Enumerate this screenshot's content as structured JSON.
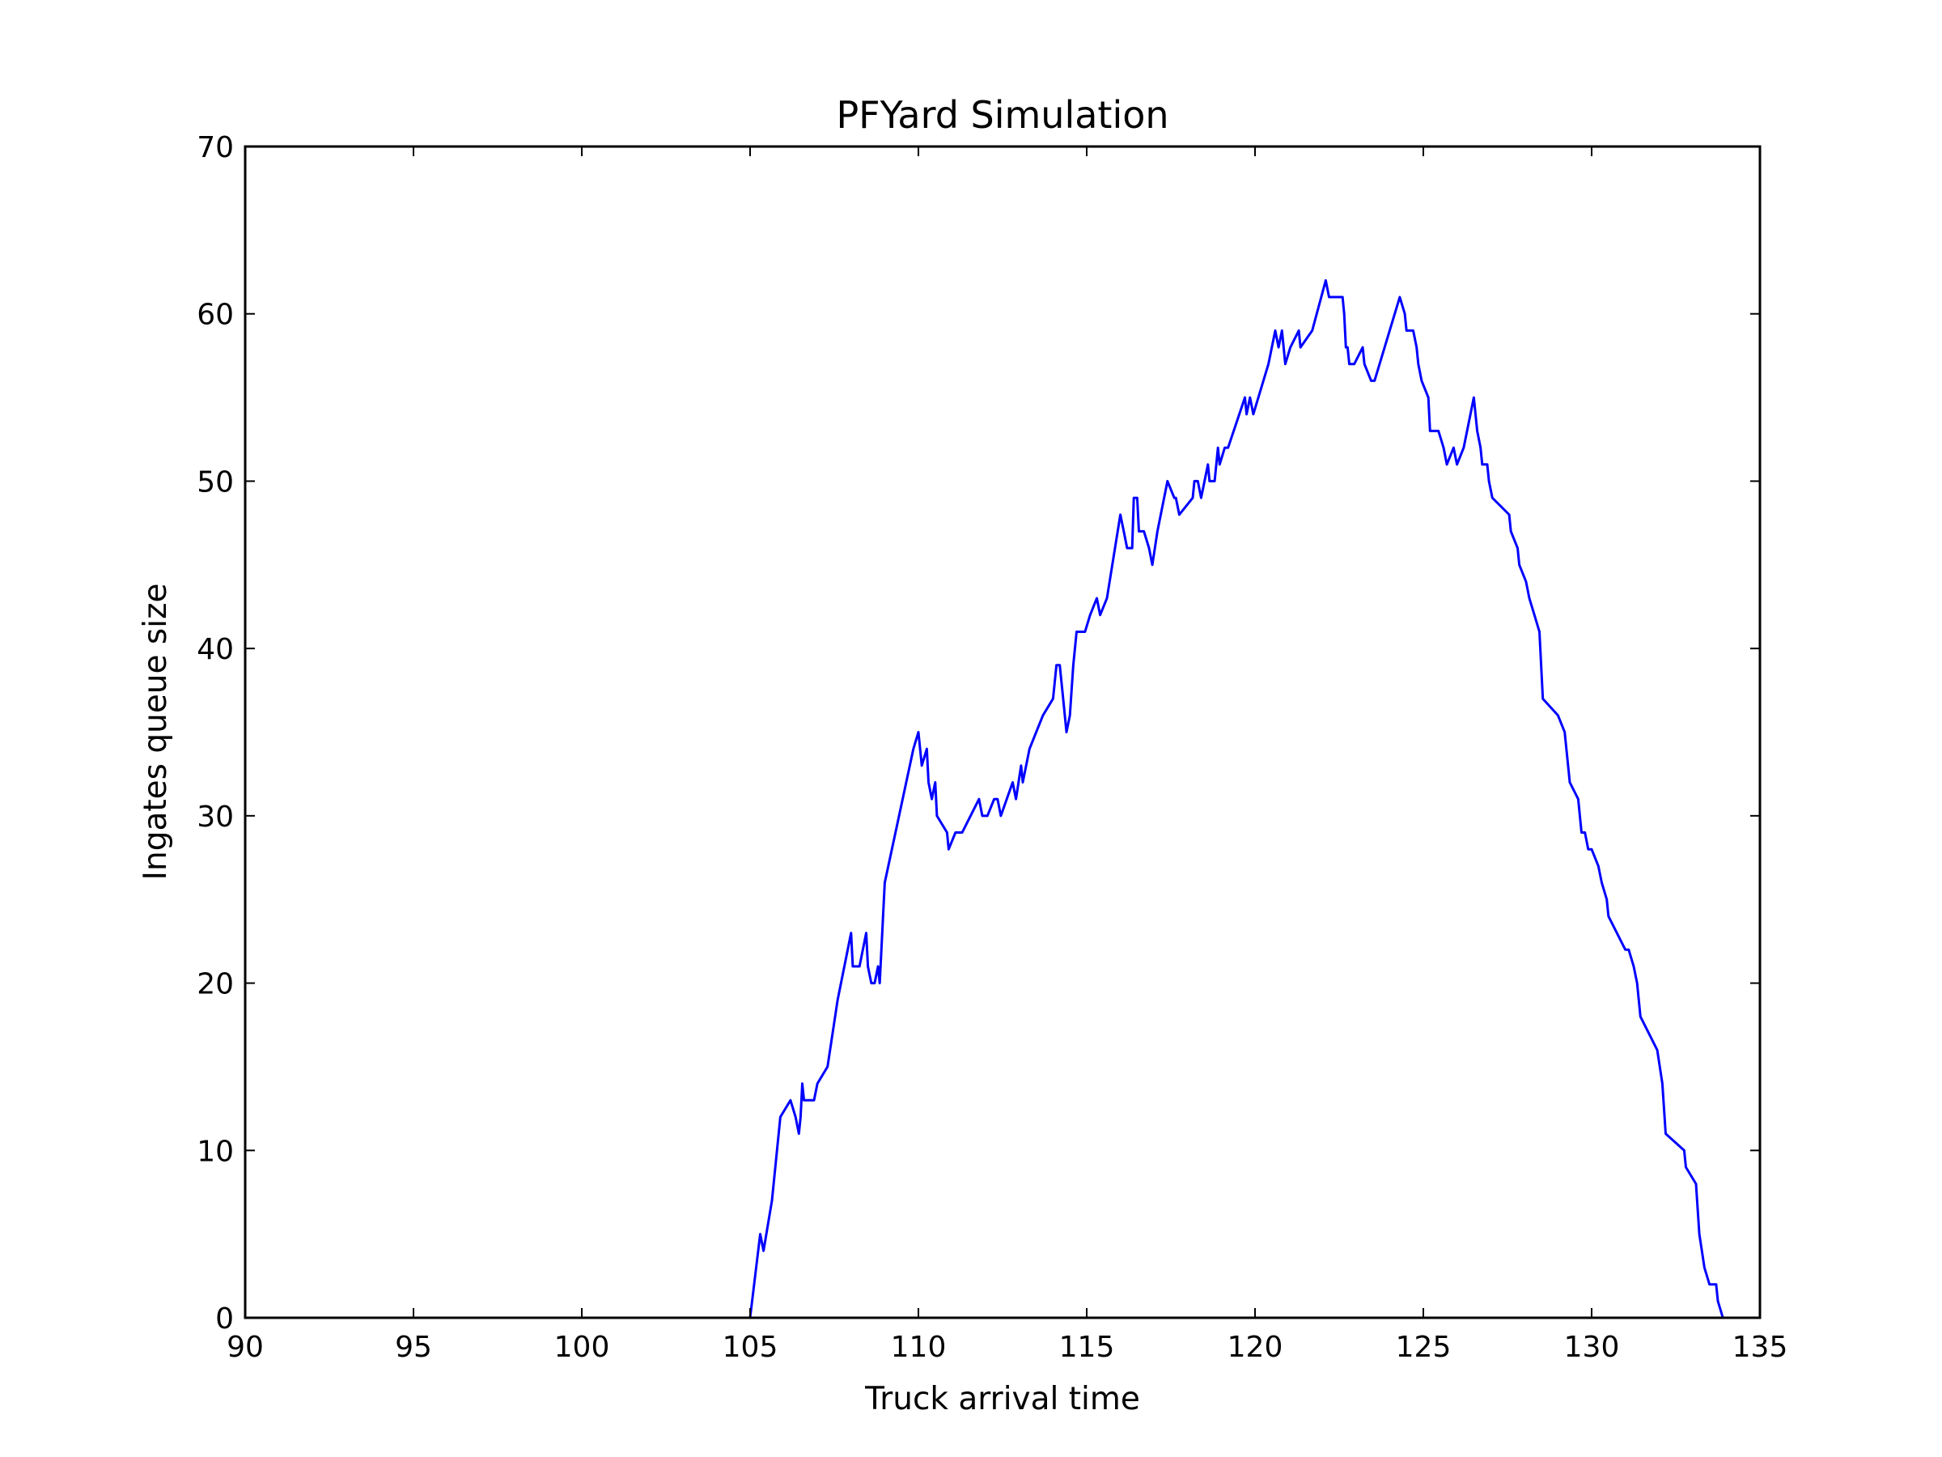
{
  "chart_data": {
    "type": "line",
    "title": "PFYard Simulation",
    "xlabel": "Truck arrival time",
    "ylabel": "Ingates queue size",
    "xlim": [
      90,
      135
    ],
    "ylim": [
      0,
      70
    ],
    "xticks": [
      90,
      95,
      100,
      105,
      110,
      115,
      120,
      125,
      130,
      135
    ],
    "yticks": [
      0,
      10,
      20,
      30,
      40,
      50,
      60,
      70
    ],
    "grid": false,
    "legend": "none",
    "series": [
      {
        "color": "#0000ff",
        "points": [
          [
            105.0,
            0
          ],
          [
            105.3,
            5
          ],
          [
            105.4,
            4
          ],
          [
            105.65,
            7
          ],
          [
            105.9,
            12
          ],
          [
            106.2,
            13
          ],
          [
            106.35,
            12
          ],
          [
            106.45,
            11
          ],
          [
            106.5,
            12
          ],
          [
            106.55,
            14
          ],
          [
            106.6,
            13
          ],
          [
            106.9,
            13
          ],
          [
            107.0,
            14
          ],
          [
            107.3,
            15
          ],
          [
            107.6,
            19
          ],
          [
            108.0,
            23
          ],
          [
            108.05,
            21
          ],
          [
            108.25,
            21
          ],
          [
            108.45,
            23
          ],
          [
            108.5,
            21
          ],
          [
            108.6,
            20
          ],
          [
            108.7,
            20
          ],
          [
            108.8,
            21
          ],
          [
            108.85,
            20
          ],
          [
            109.0,
            26
          ],
          [
            109.85,
            34
          ],
          [
            110.0,
            35
          ],
          [
            110.1,
            33
          ],
          [
            110.25,
            34
          ],
          [
            110.3,
            32
          ],
          [
            110.4,
            31
          ],
          [
            110.5,
            32
          ],
          [
            110.55,
            30
          ],
          [
            110.85,
            29
          ],
          [
            110.9,
            28
          ],
          [
            111.1,
            29
          ],
          [
            111.3,
            29
          ],
          [
            111.8,
            31
          ],
          [
            111.9,
            30
          ],
          [
            112.05,
            30
          ],
          [
            112.25,
            31
          ],
          [
            112.35,
            31
          ],
          [
            112.45,
            30
          ],
          [
            112.8,
            32
          ],
          [
            112.9,
            31
          ],
          [
            113.05,
            33
          ],
          [
            113.1,
            32
          ],
          [
            113.3,
            34
          ],
          [
            113.7,
            36
          ],
          [
            114.0,
            37
          ],
          [
            114.1,
            39
          ],
          [
            114.2,
            39
          ],
          [
            114.3,
            37
          ],
          [
            114.4,
            35
          ],
          [
            114.5,
            36
          ],
          [
            114.6,
            39
          ],
          [
            114.7,
            41
          ],
          [
            114.95,
            41
          ],
          [
            115.1,
            42
          ],
          [
            115.3,
            43
          ],
          [
            115.4,
            42
          ],
          [
            115.6,
            43
          ],
          [
            116.0,
            48
          ],
          [
            116.1,
            47
          ],
          [
            116.2,
            46
          ],
          [
            116.35,
            46
          ],
          [
            116.4,
            49
          ],
          [
            116.5,
            49
          ],
          [
            116.55,
            47
          ],
          [
            116.7,
            47
          ],
          [
            116.85,
            46
          ],
          [
            116.95,
            45
          ],
          [
            117.1,
            47
          ],
          [
            117.4,
            50
          ],
          [
            117.6,
            49
          ],
          [
            117.65,
            49
          ],
          [
            117.75,
            48
          ],
          [
            118.15,
            49
          ],
          [
            118.2,
            50
          ],
          [
            118.3,
            50
          ],
          [
            118.4,
            49
          ],
          [
            118.6,
            51
          ],
          [
            118.65,
            50
          ],
          [
            118.8,
            50
          ],
          [
            118.9,
            52
          ],
          [
            118.95,
            51
          ],
          [
            119.1,
            52
          ],
          [
            119.2,
            52
          ],
          [
            119.7,
            55
          ],
          [
            119.75,
            54
          ],
          [
            119.85,
            55
          ],
          [
            119.95,
            54
          ],
          [
            120.4,
            57
          ],
          [
            120.6,
            59
          ],
          [
            120.7,
            58
          ],
          [
            120.8,
            59
          ],
          [
            120.9,
            57
          ],
          [
            121.05,
            58
          ],
          [
            121.3,
            59
          ],
          [
            121.35,
            58
          ],
          [
            121.7,
            59
          ],
          [
            122.1,
            62
          ],
          [
            122.2,
            61
          ],
          [
            122.6,
            61
          ],
          [
            122.65,
            60
          ],
          [
            122.7,
            58
          ],
          [
            122.75,
            58
          ],
          [
            122.8,
            57
          ],
          [
            122.95,
            57
          ],
          [
            123.2,
            58
          ],
          [
            123.25,
            57
          ],
          [
            123.45,
            56
          ],
          [
            123.55,
            56
          ],
          [
            124.3,
            61
          ],
          [
            124.45,
            60
          ],
          [
            124.5,
            59
          ],
          [
            124.7,
            59
          ],
          [
            124.8,
            58
          ],
          [
            124.85,
            57
          ],
          [
            124.95,
            56
          ],
          [
            125.15,
            55
          ],
          [
            125.2,
            53
          ],
          [
            125.45,
            53
          ],
          [
            125.6,
            52
          ],
          [
            125.7,
            51
          ],
          [
            125.9,
            52
          ],
          [
            126.0,
            51
          ],
          [
            126.2,
            52
          ],
          [
            126.5,
            55
          ],
          [
            126.6,
            53
          ],
          [
            126.7,
            52
          ],
          [
            126.75,
            51
          ],
          [
            126.9,
            51
          ],
          [
            126.95,
            50
          ],
          [
            127.05,
            49
          ],
          [
            127.55,
            48
          ],
          [
            127.6,
            47
          ],
          [
            127.8,
            46
          ],
          [
            127.85,
            45
          ],
          [
            128.05,
            44
          ],
          [
            128.15,
            43
          ],
          [
            128.3,
            42
          ],
          [
            128.45,
            41
          ],
          [
            128.5,
            39
          ],
          [
            128.55,
            37
          ],
          [
            129.0,
            36
          ],
          [
            129.2,
            35
          ],
          [
            129.25,
            34
          ],
          [
            129.35,
            32
          ],
          [
            129.6,
            31
          ],
          [
            129.7,
            29
          ],
          [
            129.8,
            29
          ],
          [
            129.9,
            28
          ],
          [
            130.0,
            28
          ],
          [
            130.2,
            27
          ],
          [
            130.3,
            26
          ],
          [
            130.45,
            25
          ],
          [
            130.5,
            24
          ],
          [
            130.75,
            23
          ],
          [
            131.0,
            22
          ],
          [
            131.1,
            22
          ],
          [
            131.25,
            21
          ],
          [
            131.35,
            20
          ],
          [
            131.45,
            18
          ],
          [
            131.7,
            17
          ],
          [
            131.95,
            16
          ],
          [
            132.1,
            14
          ],
          [
            132.2,
            11
          ],
          [
            132.75,
            10
          ],
          [
            132.8,
            9
          ],
          [
            133.1,
            8
          ],
          [
            133.2,
            5
          ],
          [
            133.35,
            3
          ],
          [
            133.5,
            2
          ],
          [
            133.7,
            2
          ],
          [
            133.75,
            1
          ],
          [
            133.9,
            0
          ]
        ]
      }
    ]
  }
}
